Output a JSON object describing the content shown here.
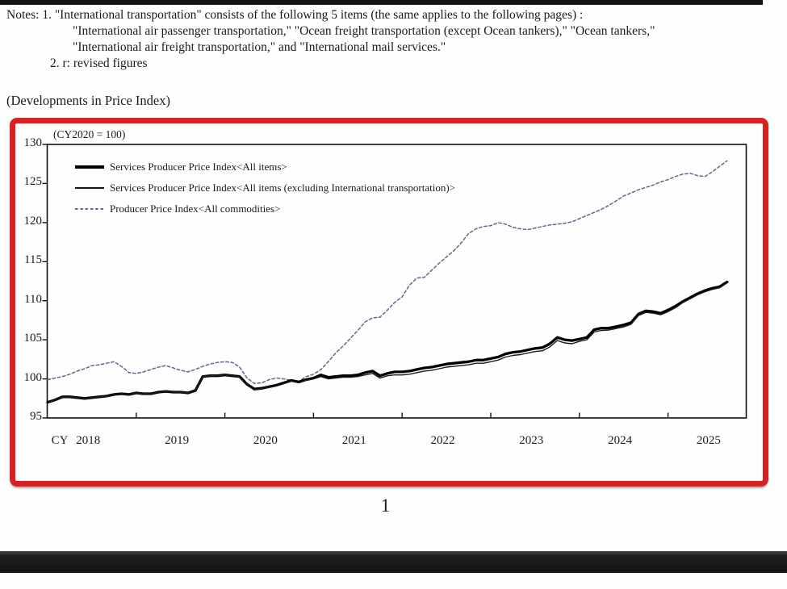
{
  "page": {
    "page_number": "1"
  },
  "notes": {
    "lines": [
      "Notes: 1. \"International transportation\" consists of the following 5 items (the same applies to the following pages) :",
      "\"International air passenger transportation,\" \"Ocean freight transportation (except Ocean tankers),\" \"Ocean tankers,\"",
      "\"International air freight transportation,\" and \"International mail services.\"",
      "2. r: revised figures"
    ]
  },
  "section": {
    "heading": "(Developments in Price Index)"
  },
  "chart_data": {
    "type": "line",
    "unit_note": "(CY2020 = 100)",
    "x_axis_prefix": "CY",
    "x_tick_labels": [
      "2018",
      "2019",
      "2020",
      "2021",
      "2022",
      "2023",
      "2024",
      "2025"
    ],
    "x_frequency": "monthly",
    "x_start": "2018-01",
    "x_end": "2025-09",
    "y_ticks": [
      130,
      125,
      120,
      115,
      110,
      105,
      100,
      95
    ],
    "ylim": [
      95,
      130
    ],
    "grid": false,
    "legend_position": "top-left-inside",
    "frame_highlight_color": "#d92121",
    "series": [
      {
        "id": "sppi-all-items",
        "name": "Services Producer Price Index<All items>",
        "style": "thick-solid-black",
        "color": "#000000",
        "values": [
          97.0,
          97.3,
          97.7,
          97.7,
          97.6,
          97.5,
          97.6,
          97.7,
          97.8,
          98.0,
          98.1,
          98.0,
          98.2,
          98.1,
          98.1,
          98.3,
          98.4,
          98.3,
          98.3,
          98.2,
          98.5,
          100.3,
          100.4,
          100.4,
          100.5,
          100.4,
          100.3,
          99.3,
          98.7,
          98.8,
          99.0,
          99.2,
          99.5,
          99.8,
          99.6,
          99.9,
          100.1,
          100.5,
          100.2,
          100.3,
          100.4,
          100.4,
          100.5,
          100.8,
          101.0,
          100.4,
          100.7,
          100.9,
          100.9,
          101.0,
          101.2,
          101.4,
          101.5,
          101.7,
          101.9,
          102.0,
          102.1,
          102.2,
          102.4,
          102.4,
          102.6,
          102.8,
          103.2,
          103.4,
          103.5,
          103.7,
          103.9,
          104.0,
          104.5,
          105.3,
          105.0,
          104.9,
          105.1,
          105.3,
          106.3,
          106.5,
          106.5,
          106.7,
          106.9,
          107.2,
          108.3,
          108.7,
          108.6,
          108.4,
          108.8,
          109.3,
          109.9,
          110.4,
          110.9,
          111.3,
          111.6,
          111.8,
          112.4
        ]
      },
      {
        "id": "sppi-excl-intl-transport",
        "name": "Services Producer Price Index<All items (excluding International transportation)>",
        "style": "thin-solid-black",
        "color": "#1a1a1a",
        "values": [
          97.0,
          97.3,
          97.7,
          97.7,
          97.6,
          97.5,
          97.6,
          97.7,
          97.8,
          98.0,
          98.1,
          98.0,
          98.2,
          98.1,
          98.1,
          98.3,
          98.4,
          98.3,
          98.3,
          98.2,
          98.5,
          100.3,
          100.4,
          100.4,
          100.5,
          100.4,
          100.25,
          99.25,
          98.65,
          98.75,
          98.9,
          99.1,
          99.4,
          99.7,
          99.5,
          99.8,
          100.0,
          100.3,
          100.0,
          100.1,
          100.2,
          100.2,
          100.3,
          100.5,
          100.7,
          100.1,
          100.4,
          100.5,
          100.5,
          100.6,
          100.8,
          101.0,
          101.1,
          101.3,
          101.5,
          101.6,
          101.7,
          101.8,
          102.0,
          102.0,
          102.2,
          102.4,
          102.8,
          103.0,
          103.1,
          103.3,
          103.5,
          103.6,
          104.1,
          104.9,
          104.6,
          104.5,
          104.8,
          105.0,
          106.0,
          106.2,
          106.25,
          106.45,
          106.65,
          107.0,
          108.1,
          108.5,
          108.4,
          108.2,
          108.6,
          109.1,
          109.75,
          110.25,
          110.75,
          111.15,
          111.45,
          111.65,
          112.3
        ]
      },
      {
        "id": "ppi-all-commodities",
        "name": "Producer Price Index<All commodities>",
        "style": "dashed-blue",
        "color": "#5b6b8f",
        "values": [
          99.9,
          100.1,
          100.3,
          100.6,
          101.0,
          101.3,
          101.7,
          101.8,
          102.0,
          102.2,
          101.6,
          100.8,
          100.7,
          100.9,
          101.2,
          101.5,
          101.7,
          101.4,
          101.1,
          100.9,
          101.2,
          101.6,
          101.9,
          102.1,
          102.2,
          102.1,
          101.5,
          100.1,
          99.4,
          99.5,
          99.9,
          100.1,
          100.0,
          99.8,
          99.7,
          100.3,
          100.6,
          101.2,
          102.2,
          103.3,
          104.2,
          105.2,
          106.2,
          107.3,
          107.8,
          107.9,
          108.8,
          109.8,
          110.5,
          112.0,
          112.9,
          113.0,
          113.9,
          114.8,
          115.6,
          116.4,
          117.4,
          118.6,
          119.2,
          119.5,
          119.6,
          120.0,
          119.8,
          119.4,
          119.2,
          119.1,
          119.3,
          119.5,
          119.7,
          119.8,
          119.9,
          120.1,
          120.5,
          120.9,
          121.3,
          121.7,
          122.2,
          122.8,
          123.4,
          123.8,
          124.2,
          124.5,
          124.8,
          125.2,
          125.5,
          125.9,
          126.2,
          126.3,
          126.0,
          125.9,
          126.5,
          127.2,
          127.9
        ]
      }
    ]
  }
}
